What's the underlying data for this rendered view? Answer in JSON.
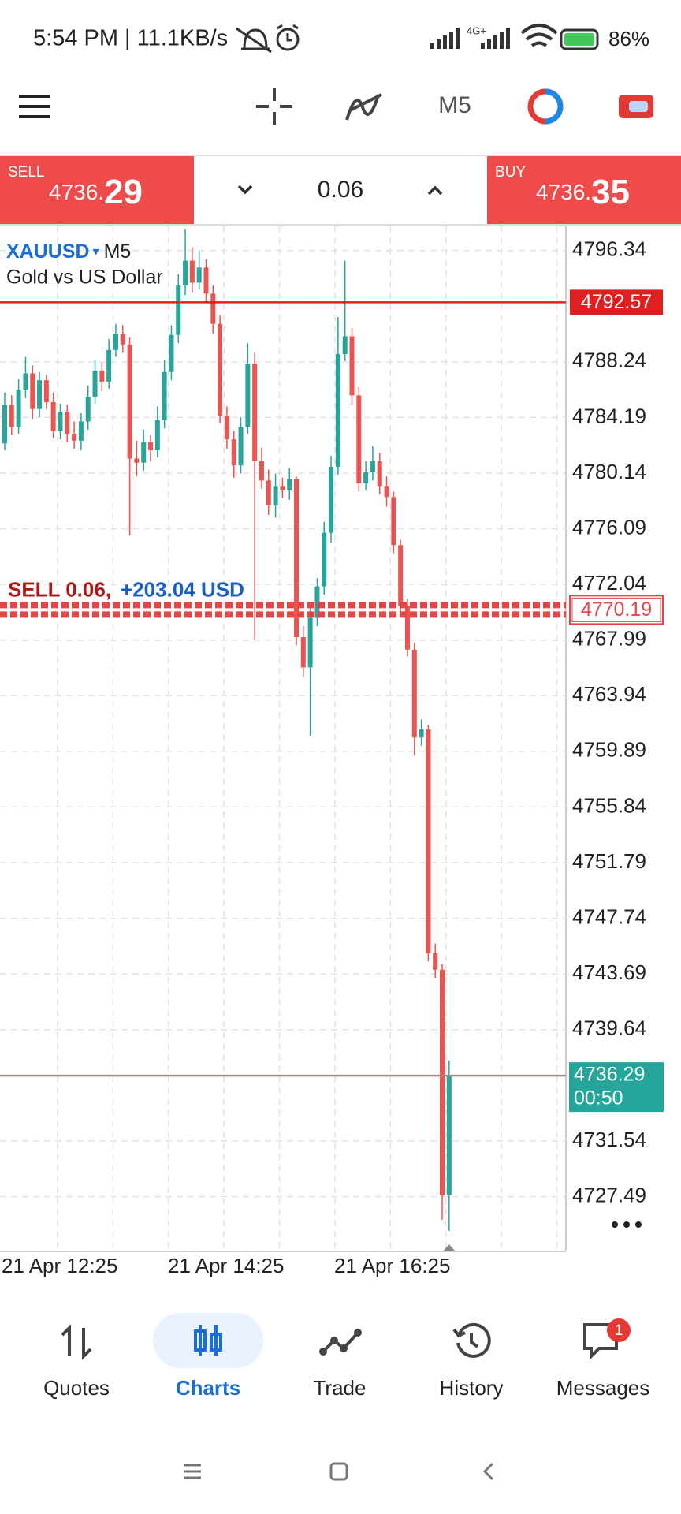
{
  "status_bar": {
    "time": "5:54 PM | 11.1KB/s",
    "network": "4G+",
    "battery": "86%"
  },
  "toolbar": {
    "timeframe": "M5"
  },
  "trade_bar": {
    "sell": {
      "label": "SELL",
      "price_head": "4736.",
      "price_tail": "29"
    },
    "lot": 0.06,
    "buy": {
      "label": "BUY",
      "price_head": "4736.",
      "price_tail": "35"
    }
  },
  "chart_data": {
    "type": "candlestick",
    "symbol": "XAUUSD",
    "timeframe": "M5",
    "description": "Gold vs US Dollar",
    "bull_color": "#26a69a",
    "bear_color": "#ef5350",
    "ylim": [
      4723.5,
      4798.1
    ],
    "yticks": [
      4796.34,
      4788.24,
      4784.19,
      4780.14,
      4776.09,
      4772.04,
      4767.99,
      4763.94,
      4759.89,
      4755.84,
      4751.79,
      4747.74,
      4743.69,
      4739.64,
      4731.54,
      4727.49
    ],
    "xticks": [
      "21 Apr 12:25",
      "21 Apr 14:25",
      "21 Apr 16:25"
    ],
    "grid": true,
    "open": [
      4782.3,
      4785.1,
      4783.5,
      4786.2,
      4787.4,
      4784.8,
      4786.9,
      4785.3,
      4783.2,
      4784.6,
      4783.0,
      4782.5,
      4783.9,
      4785.7,
      4787.6,
      4786.8,
      4789.1,
      4790.3,
      4789.5,
      4781.2,
      4780.9,
      4782.4,
      4781.8,
      4784.0,
      4787.5,
      4790.2,
      4793.8,
      4795.6,
      4794.0,
      4795.1,
      4793.2,
      4791.0,
      4784.3,
      4782.6,
      4780.7,
      4783.5,
      4788.1,
      4781.0,
      4779.6,
      4777.8,
      4779.2,
      4778.9,
      4779.7,
      4768.2,
      4766.0,
      4769.6,
      4771.9,
      4775.8,
      4780.6,
      4788.8,
      4790.1,
      4785.8,
      4779.4,
      4780.2,
      4781.0,
      4779.2,
      4778.4,
      4774.9,
      4770.5,
      4767.3,
      4760.9,
      4761.5,
      4745.2,
      4744.0,
      4727.6
    ],
    "high": [
      4786.0,
      4785.8,
      4787.0,
      4788.6,
      4788.0,
      4787.5,
      4787.3,
      4786.0,
      4785.2,
      4785.1,
      4783.9,
      4784.5,
      4786.5,
      4788.4,
      4788.2,
      4789.9,
      4791.0,
      4790.9,
      4790.0,
      4782.5,
      4783.3,
      4782.9,
      4785.0,
      4788.4,
      4790.9,
      4794.6,
      4797.9,
      4796.6,
      4796.3,
      4795.7,
      4793.8,
      4791.6,
      4785.0,
      4783.2,
      4784.2,
      4789.6,
      4788.9,
      4782.0,
      4780.4,
      4780.1,
      4779.8,
      4780.5,
      4779.9,
      4769.0,
      4770.3,
      4772.5,
      4776.6,
      4781.4,
      4791.5,
      4795.6,
      4790.7,
      4786.4,
      4781.0,
      4782.1,
      4781.6,
      4779.9,
      4778.8,
      4775.3,
      4771.0,
      4767.8,
      4762.2,
      4761.8,
      4745.9,
      4744.4,
      4737.4
    ],
    "low": [
      4781.8,
      4782.9,
      4783.0,
      4785.6,
      4784.1,
      4784.2,
      4784.8,
      4782.7,
      4782.6,
      4782.4,
      4781.9,
      4781.8,
      4783.3,
      4785.2,
      4786.1,
      4786.3,
      4788.6,
      4788.9,
      4775.6,
      4779.9,
      4780.3,
      4781.0,
      4781.3,
      4783.4,
      4786.9,
      4789.6,
      4793.1,
      4793.3,
      4793.5,
      4792.6,
      4790.3,
      4783.8,
      4781.9,
      4779.8,
      4780.1,
      4783.0,
      4768.0,
      4779.0,
      4777.1,
      4776.9,
      4778.3,
      4778.2,
      4767.6,
      4765.3,
      4761.0,
      4769.0,
      4771.3,
      4775.1,
      4780.0,
      4788.3,
      4785.1,
      4778.8,
      4778.9,
      4779.6,
      4778.6,
      4777.7,
      4774.3,
      4770.0,
      4766.8,
      4759.6,
      4760.3,
      4744.6,
      4743.4,
      4725.8,
      4725.0
    ],
    "close": [
      4785.1,
      4783.5,
      4786.2,
      4787.4,
      4784.8,
      4786.9,
      4785.3,
      4783.2,
      4784.6,
      4783.0,
      4782.5,
      4783.9,
      4785.7,
      4787.6,
      4786.8,
      4789.1,
      4790.3,
      4789.5,
      4781.2,
      4780.9,
      4782.4,
      4781.8,
      4784.0,
      4787.5,
      4790.2,
      4793.8,
      4795.6,
      4794.0,
      4795.1,
      4793.2,
      4791.0,
      4784.3,
      4782.6,
      4780.7,
      4783.5,
      4788.1,
      4781.0,
      4779.6,
      4777.8,
      4779.2,
      4778.9,
      4779.7,
      4768.2,
      4766.0,
      4769.6,
      4771.9,
      4775.8,
      4780.6,
      4788.8,
      4790.1,
      4785.8,
      4779.4,
      4780.2,
      4781.0,
      4779.2,
      4778.4,
      4774.9,
      4770.5,
      4767.3,
      4760.9,
      4761.5,
      4745.2,
      4744.0,
      4727.6,
      4736.29
    ],
    "level_line": {
      "value": 4792.57,
      "color": "#e02020"
    },
    "position": {
      "side": "SELL 0.06,",
      "profit": "+203.04 USD",
      "value": 4770.19,
      "color": "#e04848"
    },
    "bid_line": {
      "value": 4736.29,
      "timer": "00:50",
      "color": "#26a69a"
    }
  },
  "bottom_nav": {
    "items": [
      "Quotes",
      "Charts",
      "Trade",
      "History",
      "Messages"
    ],
    "badge": 1
  }
}
